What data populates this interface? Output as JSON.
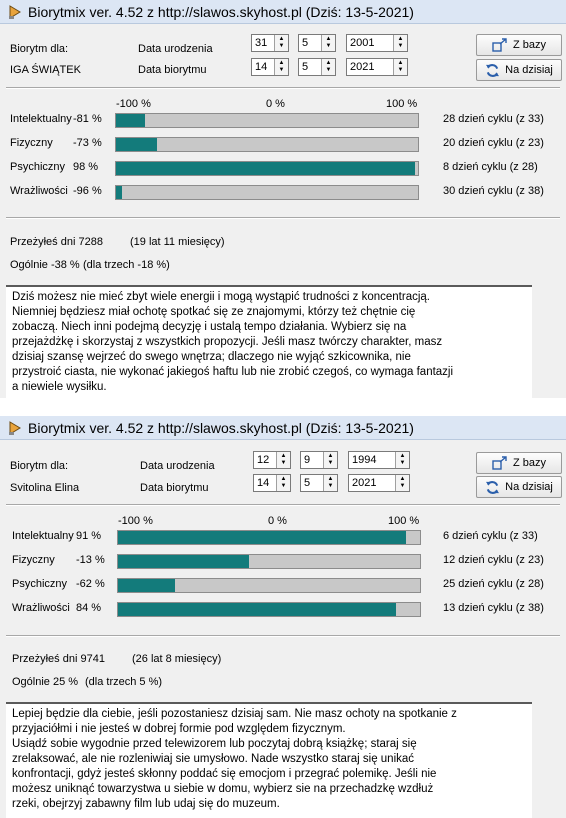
{
  "windows": [
    {
      "title": "Biorytmix ver. 4.52 z http://slawos.skyhost.pl (Dziś: 13-5-2021)",
      "labels": {
        "biorytm_dla": "Biorytm dla:",
        "person": "IGA ŚWIĄTEK",
        "data_urodzenia": "Data urodzenia",
        "data_biorytmu": "Data biorytmu"
      },
      "birth": {
        "day": "31",
        "month": "5",
        "year": "2001"
      },
      "target": {
        "day": "14",
        "month": "5",
        "year": "2021"
      },
      "buttons": {
        "z_bazy": "Z bazy",
        "na_dzisiaj": "Na dzisiaj"
      },
      "scale": {
        "min": "-100 %",
        "mid": "0 %",
        "max": "100 %"
      },
      "cycles": [
        {
          "label": "Intelektualny",
          "percent": "-81 %",
          "value": -81,
          "info": "28 dzień cyklu (z 33)"
        },
        {
          "label": "Fizyczny",
          "percent": "-73 %",
          "value": -73,
          "info": "20 dzień cyklu (z 23)"
        },
        {
          "label": "Psychiczny",
          "percent": "98 %",
          "value": 98,
          "info": "8 dzień cyklu (z 28)"
        },
        {
          "label": "Wrażliwości",
          "percent": "-96 %",
          "value": -96,
          "info": "30 dzień cyklu (z 38)"
        }
      ],
      "lived": {
        "days": "Przeżyłeś dni 7288",
        "years": "(19 lat 11 miesięcy)"
      },
      "overall": {
        "text": "Ogólnie -38 %",
        "three": "(dla trzech -18 %)"
      },
      "description": [
        "Dziś możesz nie mieć zbyt wiele energii i mogą wystąpić trudności z koncentracją.",
        "Niemniej będziesz miał ochotę spotkać się ze znajomymi, którzy też chętnie cię",
        "zobaczą. Niech inni podejmą decyzję i ustalą tempo działania. Wybierz się na",
        "przejażdżkę i skorzystaj z wszystkich propozycji. Jeśli masz twórczy charakter, masz",
        "dzisiaj  szansę wejrzeć do swego wnętrza; dlaczego nie wyjąć szkicownika, nie",
        "przystroić ciasta, nie wykonać jakiegoś haftu lub nie zrobić czegoś, co wymaga fantazji",
        "a niewiele wysiłku."
      ]
    },
    {
      "title": "Biorytmix ver. 4.52 z http://slawos.skyhost.pl (Dziś: 13-5-2021)",
      "labels": {
        "biorytm_dla": "Biorytm dla:",
        "person": "Svitolina Elina",
        "data_urodzenia": "Data urodzenia",
        "data_biorytmu": "Data biorytmu"
      },
      "birth": {
        "day": "12",
        "month": "9",
        "year": "1994"
      },
      "target": {
        "day": "14",
        "month": "5",
        "year": "2021"
      },
      "buttons": {
        "z_bazy": "Z bazy",
        "na_dzisiaj": "Na dzisiaj"
      },
      "scale": {
        "min": "-100 %",
        "mid": "0 %",
        "max": "100 %"
      },
      "cycles": [
        {
          "label": "Intelektualny",
          "percent": "91 %",
          "value": 91,
          "info": "6 dzień cyklu (z 33)"
        },
        {
          "label": "Fizyczny",
          "percent": "-13 %",
          "value": -13,
          "info": "12 dzień cyklu (z 23)"
        },
        {
          "label": "Psychiczny",
          "percent": "-62 %",
          "value": -62,
          "info": "25 dzień cyklu (z 28)"
        },
        {
          "label": "Wrażliwości",
          "percent": "84 %",
          "value": 84,
          "info": "13 dzień cyklu (z 38)"
        }
      ],
      "lived": {
        "days": "Przeżyłeś dni 9741",
        "years": "(26 lat 8 miesięcy)"
      },
      "overall": {
        "text": "Ogólnie 25 %",
        "three": "(dla trzech 5 %)"
      },
      "description": [
        "Lepiej będzie dla ciebie, jeśli pozostaniesz dzisiaj sam. Nie masz ochoty na spotkanie z",
        "przyjaciółmi i nie jesteś w dobrej formie pod względem fizycznym.",
        "Usiądź sobie wygodnie przed telewizorem lub poczytaj dobrą książkę; staraj się",
        "zrelaksować, ale nie rozleniwiaj sie umysłowo. Nade wszystko staraj się unikać",
        "konfrontacji, gdyż jesteś skłonny poddać się emocjom i przegrać polemikę. Jeśli nie",
        "możesz uniknąć towarzystwa u siebie w domu, wybierz sie na przechadzkę wzdłuż",
        "rzeki, obejrzyj zabawny film lub udaj się do muzeum."
      ]
    }
  ],
  "colors": {
    "bar_fill": "#137b7b",
    "bar_track": "#c8c8c8",
    "titlebar": "#dce6f4"
  },
  "icons": {
    "title": "app-logo-icon",
    "z_bazy": "database-arrow-icon",
    "na_dzisiaj": "refresh-icon"
  }
}
